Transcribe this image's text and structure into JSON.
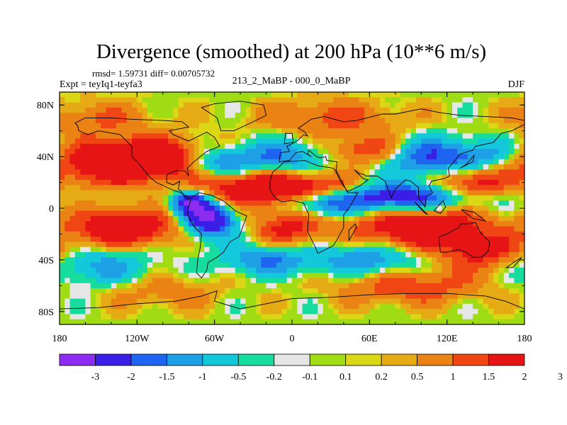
{
  "chart_data": {
    "type": "heatmap",
    "title": "Divergence (smoothed) at 200 hPa (10**6 m/s)",
    "subtitle_left_line1": "rmsd= 1.59731 diff= 0.00705732",
    "subtitle_left_line2": "Expt = teyIq1-teyfa3",
    "subtitle_center": "213_2_MaBP - 000_0_MaBP",
    "subtitle_right": "DJF",
    "x_range": [
      -180,
      180
    ],
    "y_range": [
      -90,
      90
    ],
    "x_ticks": [
      {
        "value": -180,
        "label": "180"
      },
      {
        "value": -120,
        "label": "120W"
      },
      {
        "value": -60,
        "label": "60W"
      },
      {
        "value": 0,
        "label": "0"
      },
      {
        "value": 60,
        "label": "60E"
      },
      {
        "value": 120,
        "label": "120E"
      },
      {
        "value": 180,
        "label": "180"
      }
    ],
    "y_ticks": [
      {
        "value": 80,
        "label": "80N"
      },
      {
        "value": 40,
        "label": "40N"
      },
      {
        "value": 0,
        "label": "0"
      },
      {
        "value": -40,
        "label": "40S"
      },
      {
        "value": -80,
        "label": "80S"
      }
    ],
    "colorbar": {
      "colors": [
        "#8c2cf0",
        "#3a1ee6",
        "#1e64f0",
        "#1ea0e6",
        "#14c8dc",
        "#16dc9e",
        "#e6e6e6",
        "#a0dc14",
        "#dcd714",
        "#e6aa14",
        "#eb8214",
        "#f04614",
        "#e61414"
      ],
      "labels": [
        "-3",
        "-2",
        "-1.5",
        "-1",
        "-0.5",
        "-0.2",
        "-0.1",
        "0.1",
        "0.2",
        "0.5",
        "1",
        "1.5",
        "2",
        "3"
      ]
    },
    "features": [
      {
        "lon": -140,
        "lat": 35,
        "sx": 40,
        "sy": 12,
        "amp": 2.6
      },
      {
        "lon": -100,
        "lat": 40,
        "sx": 25,
        "sy": 10,
        "amp": 1.8
      },
      {
        "lon": -60,
        "lat": 35,
        "sx": 20,
        "sy": 8,
        "amp": -1.8
      },
      {
        "lon": -10,
        "lat": 40,
        "sx": 25,
        "sy": 10,
        "amp": -1.5
      },
      {
        "lon": 60,
        "lat": 45,
        "sx": 20,
        "sy": 8,
        "amp": 1.8
      },
      {
        "lon": 100,
        "lat": 40,
        "sx": 25,
        "sy": 10,
        "amp": -1.8
      },
      {
        "lon": 150,
        "lat": 40,
        "sx": 25,
        "sy": 10,
        "amp": -1.5
      },
      {
        "lon": 140,
        "lat": 20,
        "sx": 20,
        "sy": 8,
        "amp": 2.0
      },
      {
        "lon": -30,
        "lat": 15,
        "sx": 30,
        "sy": 10,
        "amp": 2.5
      },
      {
        "lon": 20,
        "lat": 15,
        "sx": 25,
        "sy": 8,
        "amp": 2.2
      },
      {
        "lon": 80,
        "lat": 8,
        "sx": 40,
        "sy": 8,
        "amp": -2.8
      },
      {
        "lon": 20,
        "lat": 5,
        "sx": 20,
        "sy": 8,
        "amp": -1.8
      },
      {
        "lon": -65,
        "lat": -8,
        "sx": 14,
        "sy": 10,
        "amp": -3.5
      },
      {
        "lon": -80,
        "lat": 5,
        "sx": 10,
        "sy": 6,
        "amp": -2.5
      },
      {
        "lon": -130,
        "lat": -15,
        "sx": 30,
        "sy": 10,
        "amp": 2.6
      },
      {
        "lon": 100,
        "lat": -15,
        "sx": 35,
        "sy": 12,
        "amp": 2.8
      },
      {
        "lon": 0,
        "lat": -15,
        "sx": 20,
        "sy": 10,
        "amp": 1.8
      },
      {
        "lon": -20,
        "lat": -40,
        "sx": 25,
        "sy": 8,
        "amp": -1.5
      },
      {
        "lon": 60,
        "lat": -40,
        "sx": 30,
        "sy": 10,
        "amp": -1.6
      },
      {
        "lon": 150,
        "lat": -35,
        "sx": 25,
        "sy": 10,
        "amp": 1.6
      },
      {
        "lon": -150,
        "lat": -45,
        "sx": 30,
        "sy": 10,
        "amp": -1.3
      },
      {
        "lon": 90,
        "lat": -60,
        "sx": 40,
        "sy": 10,
        "amp": 1.5
      },
      {
        "lon": -100,
        "lat": -65,
        "sx": 30,
        "sy": 10,
        "amp": 0.8
      },
      {
        "lon": 30,
        "lat": 70,
        "sx": 40,
        "sy": 10,
        "amp": 1.2
      },
      {
        "lon": -150,
        "lat": 70,
        "sx": 30,
        "sy": 10,
        "amp": 1.0
      }
    ],
    "continents": [
      [
        [
          -168,
          66
        ],
        [
          -160,
          70
        ],
        [
          -140,
          70
        ],
        [
          -125,
          69
        ],
        [
          -100,
          68
        ],
        [
          -85,
          67
        ],
        [
          -80,
          63
        ],
        [
          -95,
          60
        ],
        [
          -92,
          57
        ],
        [
          -80,
          52
        ],
        [
          -66,
          59
        ],
        [
          -60,
          55
        ],
        [
          -56,
          48
        ],
        [
          -66,
          44
        ],
        [
          -76,
          36
        ],
        [
          -81,
          31
        ],
        [
          -80,
          25
        ],
        [
          -83,
          29
        ],
        [
          -90,
          29
        ],
        [
          -97,
          26
        ],
        [
          -97,
          20
        ],
        [
          -92,
          18
        ],
        [
          -87,
          21
        ],
        [
          -88,
          15
        ],
        [
          -83,
          10
        ],
        [
          -79,
          8
        ],
        [
          -81,
          7
        ],
        [
          -86,
          12
        ],
        [
          -92,
          14
        ],
        [
          -105,
          20
        ],
        [
          -110,
          24
        ],
        [
          -115,
          30
        ],
        [
          -118,
          34
        ],
        [
          -124,
          40
        ],
        [
          -124,
          48
        ],
        [
          -133,
          57
        ],
        [
          -150,
          60
        ],
        [
          -158,
          57
        ],
        [
          -165,
          60
        ],
        [
          -166,
          64
        ]
      ],
      [
        [
          -78,
          8
        ],
        [
          -72,
          12
        ],
        [
          -62,
          10
        ],
        [
          -52,
          5
        ],
        [
          -44,
          -2
        ],
        [
          -35,
          -6
        ],
        [
          -38,
          -14
        ],
        [
          -41,
          -22
        ],
        [
          -48,
          -26
        ],
        [
          -53,
          -34
        ],
        [
          -58,
          -38
        ],
        [
          -65,
          -42
        ],
        [
          -66,
          -48
        ],
        [
          -70,
          -54
        ],
        [
          -74,
          -50
        ],
        [
          -73,
          -40
        ],
        [
          -71,
          -30
        ],
        [
          -70,
          -20
        ],
        [
          -76,
          -14
        ],
        [
          -81,
          -5
        ],
        [
          -80,
          1
        ]
      ],
      [
        [
          -55,
          60
        ],
        [
          -45,
          60
        ],
        [
          -30,
          67
        ],
        [
          -20,
          72
        ],
        [
          -22,
          80
        ],
        [
          -40,
          83
        ],
        [
          -60,
          81
        ],
        [
          -70,
          78
        ],
        [
          -58,
          70
        ]
      ],
      [
        [
          -17,
          21
        ],
        [
          -15,
          28
        ],
        [
          -10,
          32
        ],
        [
          -6,
          36
        ],
        [
          10,
          37
        ],
        [
          20,
          33
        ],
        [
          32,
          31
        ],
        [
          35,
          28
        ],
        [
          43,
          12
        ],
        [
          51,
          12
        ],
        [
          44,
          0
        ],
        [
          40,
          -5
        ],
        [
          40,
          -15
        ],
        [
          35,
          -24
        ],
        [
          32,
          -29
        ],
        [
          20,
          -35
        ],
        [
          18,
          -30
        ],
        [
          12,
          -18
        ],
        [
          13,
          -5
        ],
        [
          9,
          4
        ],
        [
          0,
          6
        ],
        [
          -8,
          5
        ],
        [
          -13,
          8
        ],
        [
          -17,
          14
        ]
      ],
      [
        [
          -10,
          36
        ],
        [
          -9,
          43
        ],
        [
          -2,
          44
        ],
        [
          -4,
          48
        ],
        [
          2,
          51
        ],
        [
          5,
          53
        ],
        [
          9,
          57
        ],
        [
          12,
          56
        ],
        [
          10,
          59
        ],
        [
          5,
          62
        ],
        [
          15,
          69
        ],
        [
          25,
          71
        ],
        [
          40,
          67
        ],
        [
          50,
          68
        ],
        [
          70,
          73
        ],
        [
          80,
          73
        ],
        [
          100,
          77
        ],
        [
          115,
          74
        ],
        [
          130,
          72
        ],
        [
          150,
          71
        ],
        [
          170,
          70
        ],
        [
          180,
          68
        ],
        [
          180,
          65
        ],
        [
          170,
          60
        ],
        [
          162,
          58
        ],
        [
          156,
          51
        ],
        [
          142,
          48
        ],
        [
          140,
          45
        ],
        [
          130,
          42
        ],
        [
          127,
          38
        ],
        [
          121,
          31
        ],
        [
          122,
          25
        ],
        [
          118,
          23
        ],
        [
          108,
          21
        ],
        [
          106,
          17
        ],
        [
          109,
          12
        ],
        [
          104,
          9
        ],
        [
          103,
          1
        ],
        [
          98,
          8
        ],
        [
          98,
          16
        ],
        [
          92,
          21
        ],
        [
          88,
          22
        ],
        [
          80,
          15
        ],
        [
          77,
          8
        ],
        [
          72,
          21
        ],
        [
          66,
          25
        ],
        [
          57,
          25
        ],
        [
          56,
          26
        ],
        [
          52,
          27
        ],
        [
          48,
          30
        ],
        [
          55,
          23
        ],
        [
          59,
          22
        ],
        [
          52,
          17
        ],
        [
          43,
          13
        ],
        [
          38,
          20
        ],
        [
          34,
          28
        ],
        [
          35,
          36
        ],
        [
          27,
          37
        ],
        [
          26,
          40
        ],
        [
          22,
          39
        ],
        [
          19,
          40
        ],
        [
          13,
          45
        ],
        [
          12,
          42
        ],
        [
          15,
          40
        ],
        [
          8,
          44
        ],
        [
          3,
          43
        ],
        [
          -2,
          37
        ]
      ],
      [
        [
          114,
          -22
        ],
        [
          120,
          -20
        ],
        [
          129,
          -15
        ],
        [
          131,
          -12
        ],
        [
          137,
          -12
        ],
        [
          142,
          -11
        ],
        [
          146,
          -19
        ],
        [
          153,
          -26
        ],
        [
          152,
          -33
        ],
        [
          147,
          -38
        ],
        [
          140,
          -38
        ],
        [
          135,
          -34
        ],
        [
          129,
          -32
        ],
        [
          120,
          -34
        ],
        [
          115,
          -34
        ],
        [
          114,
          -26
        ]
      ],
      [
        [
          -180,
          -78
        ],
        [
          -150,
          -77
        ],
        [
          -120,
          -74
        ],
        [
          -90,
          -72
        ],
        [
          -70,
          -68
        ],
        [
          -58,
          -64
        ],
        [
          -60,
          -72
        ],
        [
          -40,
          -78
        ],
        [
          -20,
          -74
        ],
        [
          0,
          -70
        ],
        [
          30,
          -69
        ],
        [
          60,
          -67
        ],
        [
          90,
          -66
        ],
        [
          120,
          -66
        ],
        [
          150,
          -68
        ],
        [
          165,
          -72
        ],
        [
          180,
          -78
        ],
        [
          180,
          -90
        ],
        [
          -180,
          -90
        ]
      ],
      [
        [
          44,
          -25
        ],
        [
          47,
          -20
        ],
        [
          50,
          -15
        ],
        [
          49,
          -12
        ],
        [
          44,
          -17
        ]
      ],
      [
        [
          95,
          5
        ],
        [
          105,
          -5
        ],
        [
          102,
          -3
        ]
      ],
      [
        [
          110,
          -2
        ],
        [
          117,
          6
        ],
        [
          119,
          1
        ],
        [
          115,
          -4
        ]
      ],
      [
        [
          131,
          -1
        ],
        [
          141,
          -3
        ],
        [
          150,
          -10
        ],
        [
          140,
          -8
        ]
      ],
      [
        [
          -6,
          50
        ],
        [
          -5,
          58
        ],
        [
          0,
          58
        ],
        [
          1,
          51
        ]
      ],
      [
        [
          130,
          31
        ],
        [
          135,
          34
        ],
        [
          141,
          41
        ],
        [
          140,
          36
        ]
      ],
      [
        [
          166,
          -46
        ],
        [
          173,
          -41
        ],
        [
          178,
          -38
        ],
        [
          171,
          -46
        ]
      ]
    ]
  }
}
